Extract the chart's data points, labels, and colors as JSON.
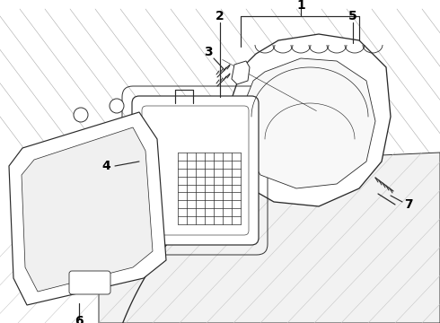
{
  "background": "#ffffff",
  "lc": "#2a2a2a",
  "lw": 0.85,
  "figsize": [
    4.9,
    3.6
  ],
  "dpi": 100,
  "callout_fs": 10,
  "callout_fw": "bold",
  "hatch_color": "#aaaaaa",
  "hatch_lw": 0.4
}
